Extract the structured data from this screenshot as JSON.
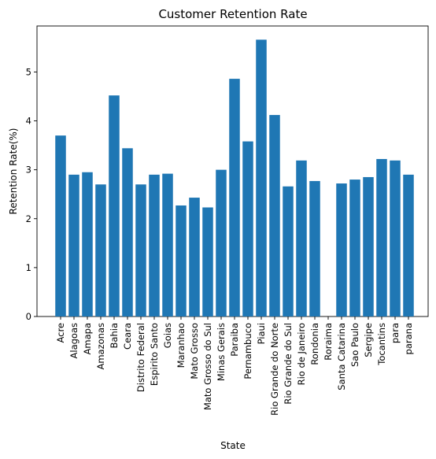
{
  "chart_data": {
    "type": "bar",
    "title": "Customer Retention Rate",
    "xlabel": "State",
    "ylabel": "Retention Rate(%)",
    "categories": [
      "Acre",
      "Alagoas",
      "Amapa",
      "Amazonas",
      "Bahia",
      "Ceara",
      "Distrito Federal",
      "Espirito Santo",
      "Goias",
      "Maranhao",
      "Mato Grosso",
      "Mato Grosso do Sul",
      "Minas Gerais",
      "Paraiba",
      "Pernambuco",
      "Piaui",
      "Rio Grande do Norte",
      "Rio Grande do Sul",
      "Rio de Janeiro",
      "Rondonia",
      "Roraima",
      "Santa Catarina",
      "Sao Paulo",
      "Sergipe",
      "Tocantins",
      "para",
      "parana"
    ],
    "values": [
      3.7,
      2.9,
      2.95,
      2.7,
      4.52,
      3.44,
      2.7,
      2.9,
      2.92,
      2.27,
      2.43,
      2.23,
      3.0,
      4.86,
      3.58,
      5.66,
      4.12,
      2.66,
      3.19,
      2.77,
      0,
      2.72,
      2.8,
      2.85,
      3.22,
      3.19,
      2.9
    ],
    "yticks": [
      0,
      1,
      2,
      3,
      4,
      5
    ],
    "ylim": [
      0,
      5.94
    ],
    "bar_color": "#1f77b4",
    "grid": false,
    "legend": "none"
  }
}
